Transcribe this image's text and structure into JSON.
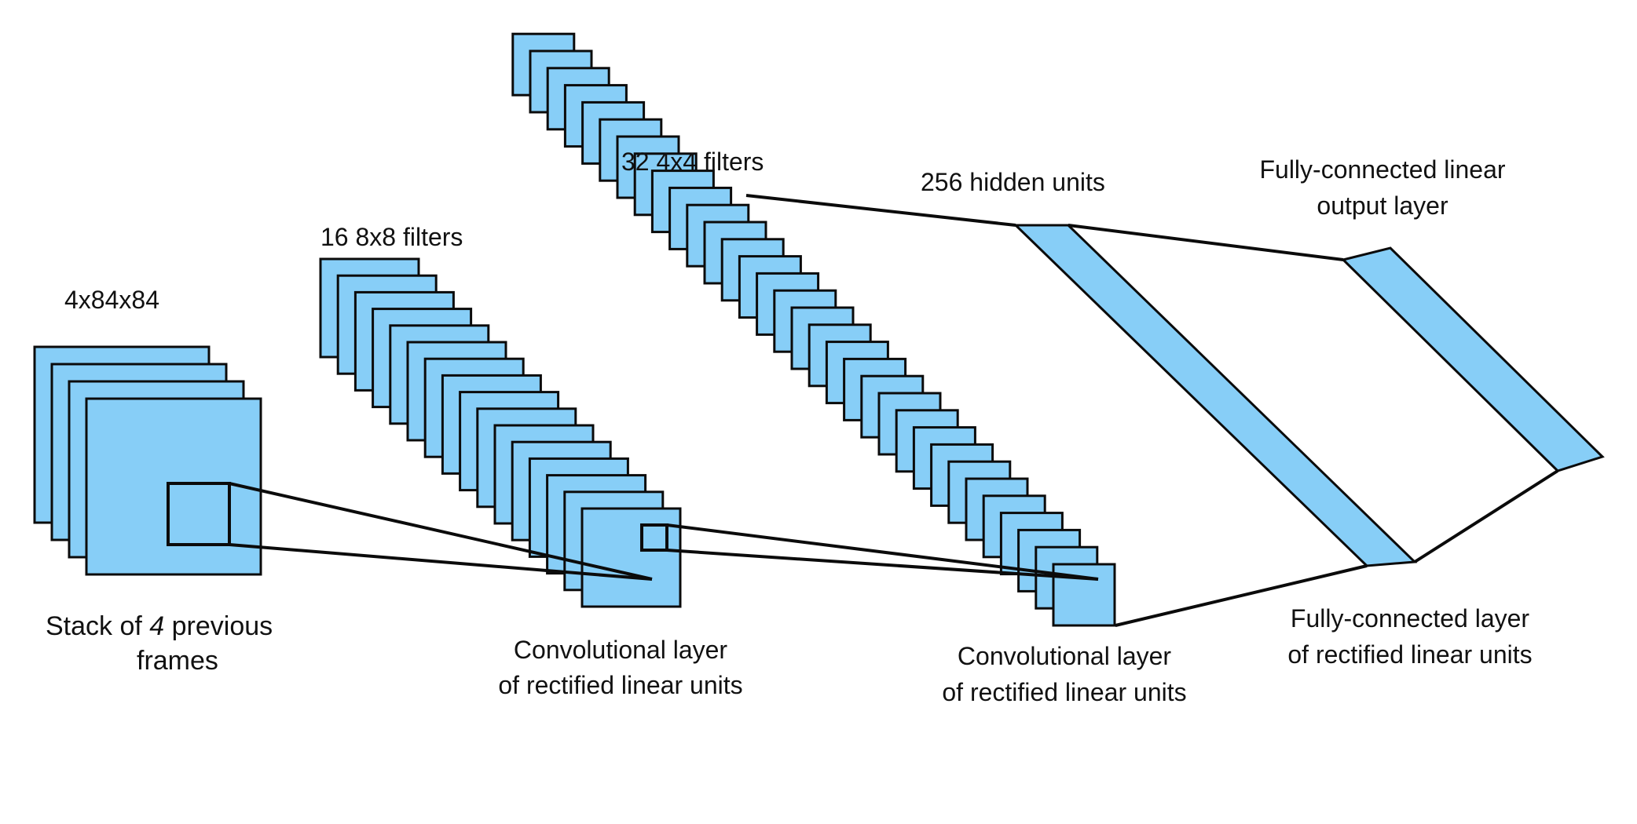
{
  "colors": {
    "fill": "#87cef7",
    "stroke": "#0b0b0b",
    "text": "#111111",
    "background": "#ffffff"
  },
  "labels": {
    "input_size": "4x84x84",
    "input_caption_line1_pre": "Stack of ",
    "input_caption_line1_em": "4",
    "input_caption_line1_post": " previous",
    "input_caption_line2": "frames",
    "conv1_filters": "16 8x8 filters",
    "conv1_caption_line1": "Convolutional layer",
    "conv1_caption_line2": "of rectified linear units",
    "conv2_filters": "32 4x4 filters",
    "conv2_caption_line1": "Convolutional layer",
    "conv2_caption_line2": "of rectified linear units",
    "hidden_units": "256 hidden units",
    "fc_caption_line1": "Fully-connected layer",
    "fc_caption_line2": "of rectified linear units",
    "output_caption_line1": "Fully-connected linear",
    "output_caption_line2": "output layer"
  },
  "layers": [
    {
      "name": "input",
      "maps": 4
    },
    {
      "name": "conv1",
      "maps": 16
    },
    {
      "name": "conv2",
      "maps": 32
    }
  ]
}
